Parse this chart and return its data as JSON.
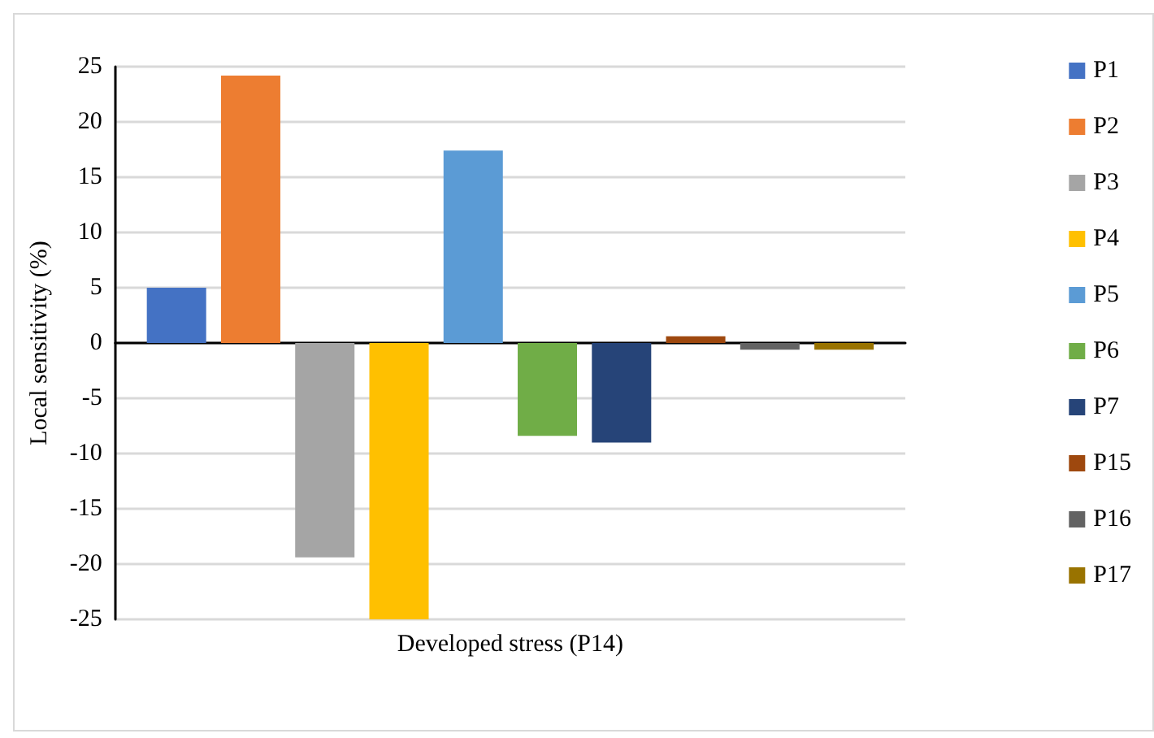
{
  "chart_data": {
    "type": "bar",
    "ylabel": "Local sensitivity (%)",
    "categories": [
      "Developed stress (P14)"
    ],
    "series": [
      {
        "name": "P1",
        "color": "#4472c4",
        "values": [
          5.0
        ]
      },
      {
        "name": "P2",
        "color": "#ed7d31",
        "values": [
          24.2
        ]
      },
      {
        "name": "P3",
        "color": "#a5a5a5",
        "values": [
          -19.4
        ]
      },
      {
        "name": "P4",
        "color": "#ffc000",
        "values": [
          -25
        ]
      },
      {
        "name": "P5",
        "color": "#5b9bd5",
        "values": [
          17.4
        ]
      },
      {
        "name": "P6",
        "color": "#70ad47",
        "values": [
          -8.4
        ]
      },
      {
        "name": "P7",
        "color": "#264478",
        "values": [
          -9.0
        ]
      },
      {
        "name": "P15",
        "color": "#9e480e",
        "values": [
          0.6
        ]
      },
      {
        "name": "P16",
        "color": "#636363",
        "values": [
          -0.6
        ]
      },
      {
        "name": "P17",
        "color": "#997300",
        "values": [
          -0.6
        ]
      }
    ],
    "ylim": [
      -25,
      25
    ],
    "yticks": [
      -25,
      -20,
      -15,
      -10,
      -5,
      0,
      5,
      10,
      15,
      20,
      25
    ],
    "grid": "y",
    "legend": "right"
  }
}
